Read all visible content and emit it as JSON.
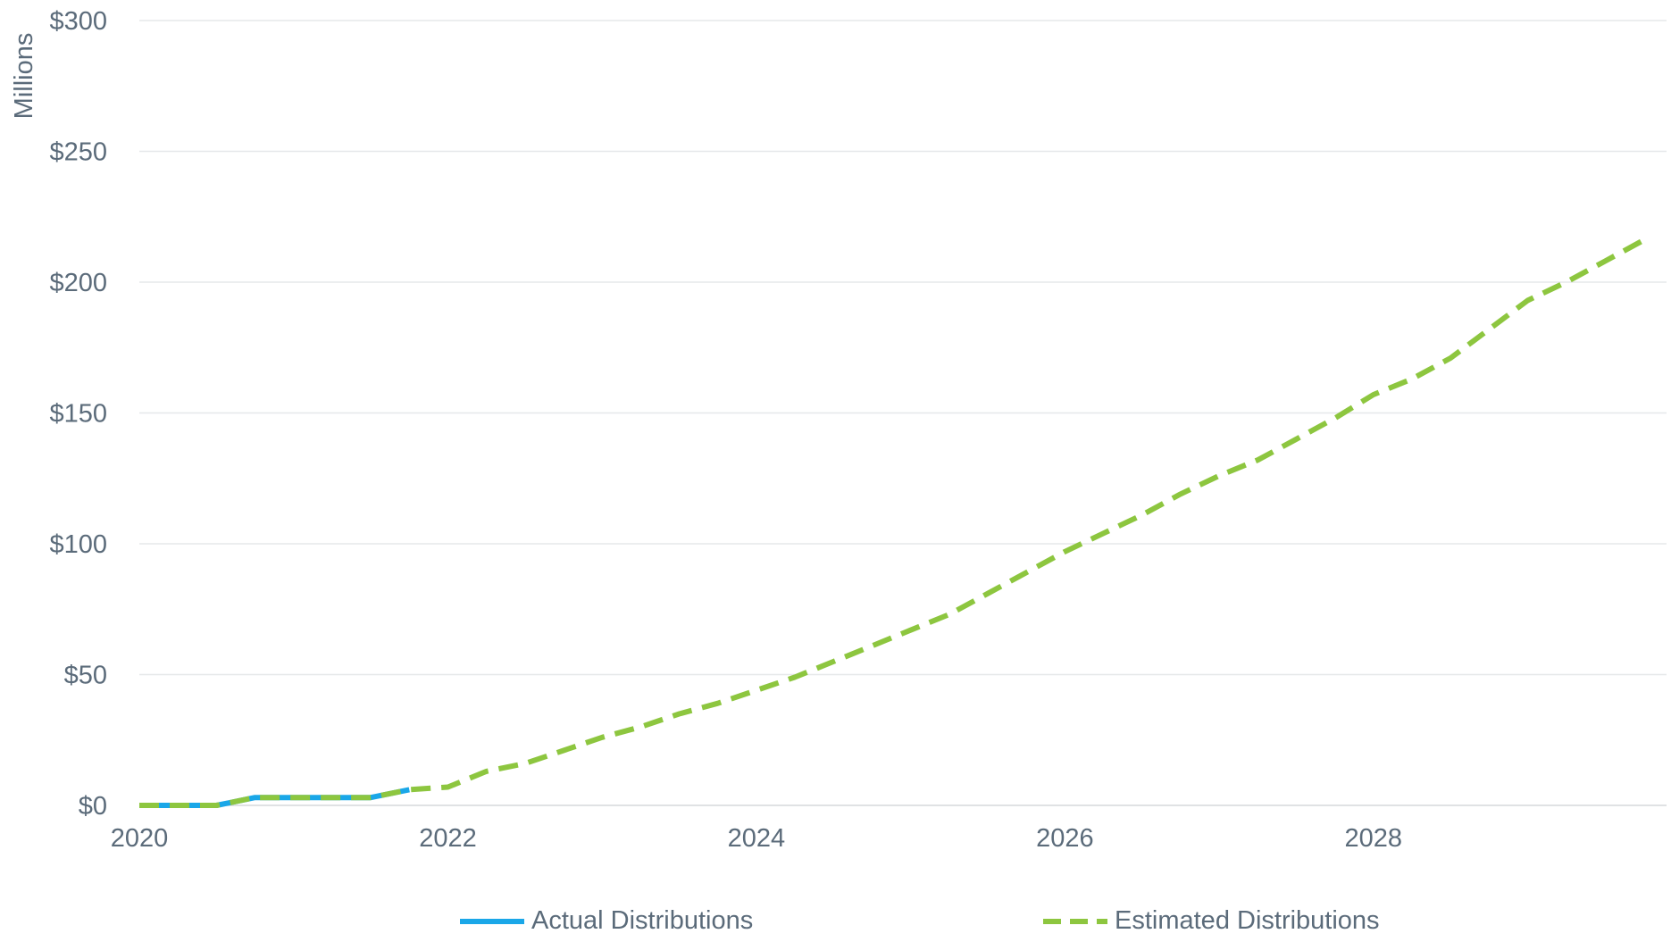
{
  "chart_data": {
    "type": "line",
    "title": "",
    "xlabel": "",
    "ylabel": "Millions",
    "xlim": [
      2020,
      2029.9
    ],
    "ylim": [
      0,
      300
    ],
    "x_ticks": [
      "2020",
      "2022",
      "2024",
      "2026",
      "2028"
    ],
    "y_ticks": [
      "$0",
      "$50",
      "$100",
      "$150",
      "$200",
      "$250",
      "$300"
    ],
    "grid": true,
    "legend_position": "bottom",
    "series": [
      {
        "name": "Actual Distributions",
        "color": "#1aa7e8",
        "style": "solid",
        "points": [
          [
            2020.0,
            0
          ],
          [
            2020.25,
            0
          ],
          [
            2020.5,
            0
          ],
          [
            2020.75,
            3
          ],
          [
            2021.0,
            3
          ],
          [
            2021.25,
            3
          ],
          [
            2021.5,
            3
          ],
          [
            2021.75,
            6
          ]
        ]
      },
      {
        "name": "Estimated Distributions",
        "color": "#8dc63f",
        "style": "dashed",
        "points": [
          [
            2020.0,
            0
          ],
          [
            2020.25,
            0
          ],
          [
            2020.5,
            0
          ],
          [
            2020.75,
            3
          ],
          [
            2021.0,
            3
          ],
          [
            2021.25,
            3
          ],
          [
            2021.5,
            3
          ],
          [
            2021.75,
            6
          ],
          [
            2022.0,
            7
          ],
          [
            2022.25,
            13
          ],
          [
            2022.5,
            16
          ],
          [
            2022.75,
            21
          ],
          [
            2023.0,
            26
          ],
          [
            2023.25,
            30
          ],
          [
            2023.5,
            35
          ],
          [
            2023.75,
            39
          ],
          [
            2024.0,
            44
          ],
          [
            2024.25,
            49
          ],
          [
            2024.5,
            55
          ],
          [
            2024.75,
            61
          ],
          [
            2025.0,
            67
          ],
          [
            2025.25,
            73
          ],
          [
            2025.5,
            81
          ],
          [
            2025.75,
            89
          ],
          [
            2026.0,
            97
          ],
          [
            2026.25,
            104
          ],
          [
            2026.5,
            111
          ],
          [
            2026.75,
            119
          ],
          [
            2027.0,
            126
          ],
          [
            2027.25,
            132
          ],
          [
            2027.5,
            140
          ],
          [
            2027.75,
            148
          ],
          [
            2028.0,
            157
          ],
          [
            2028.25,
            163
          ],
          [
            2028.5,
            171
          ],
          [
            2028.75,
            182
          ],
          [
            2029.0,
            193
          ],
          [
            2029.25,
            200
          ],
          [
            2029.5,
            208
          ],
          [
            2029.75,
            216
          ]
        ]
      }
    ]
  },
  "legend": {
    "actual_label": "Actual Distributions",
    "estimated_label": "Estimated Distributions"
  }
}
